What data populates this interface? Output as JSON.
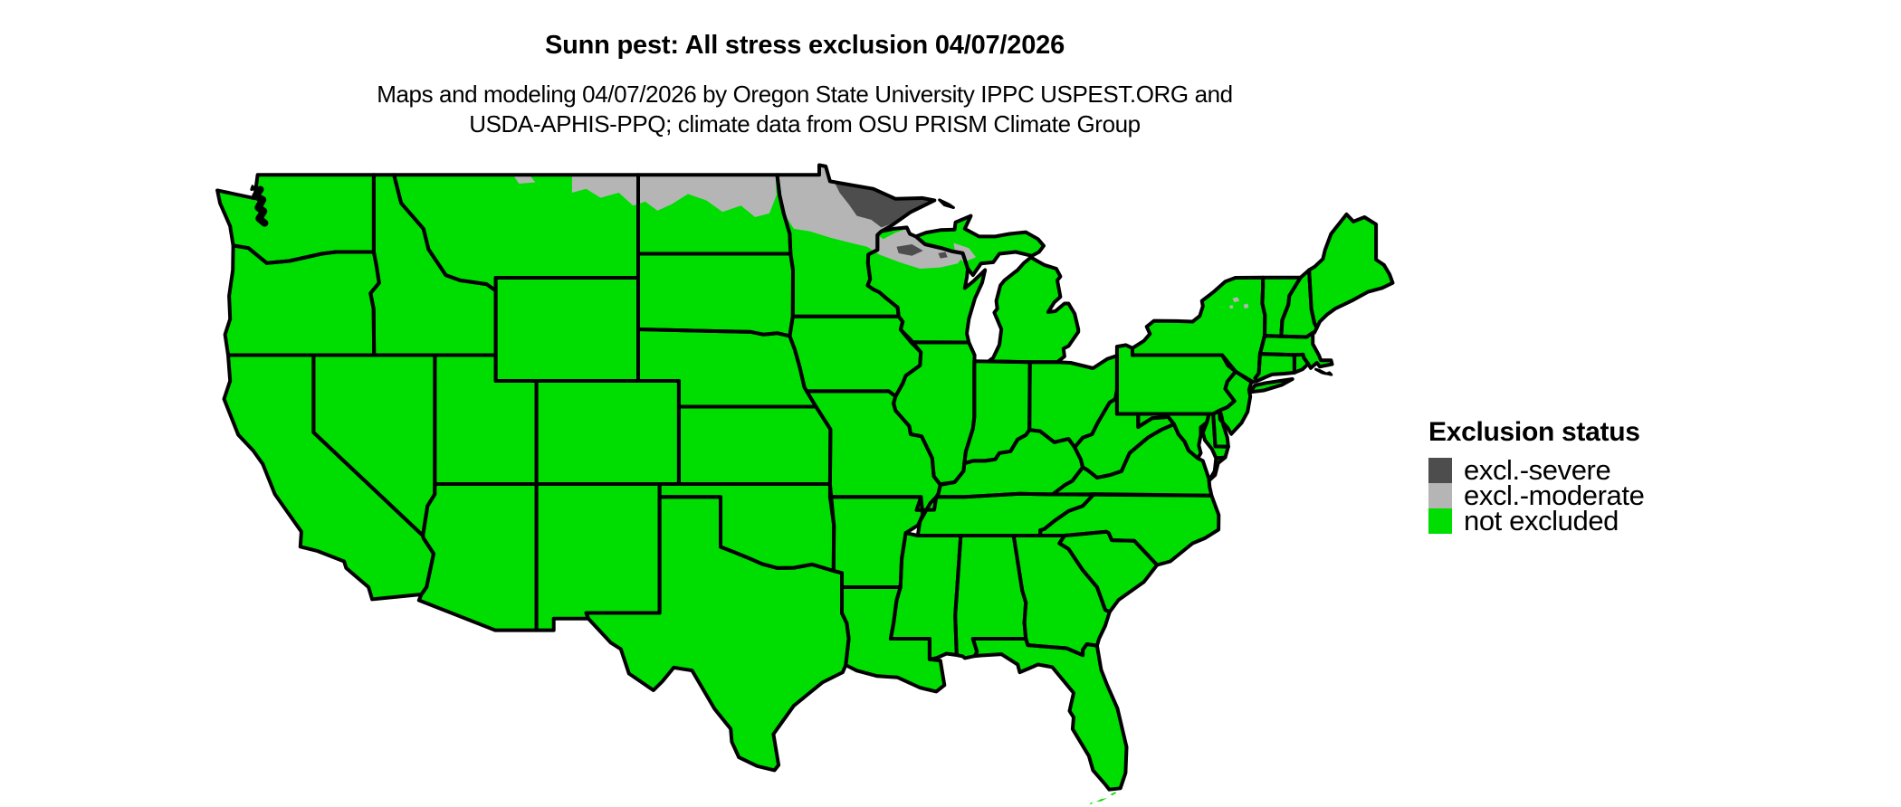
{
  "header": {
    "title": "Sunn pest: All stress exclusion 04/07/2026",
    "subtitle_line1": "Maps and modeling 04/07/2026 by Oregon State University IPPC USPEST.ORG and",
    "subtitle_line2": "USDA-APHIS-PPQ; climate data from OSU PRISM Climate Group"
  },
  "legend": {
    "title": "Exclusion status",
    "items": [
      {
        "key": "severe",
        "label": "excl.-severe",
        "color": "#4d4d4d"
      },
      {
        "key": "moderate",
        "label": "excl.-moderate",
        "color": "#b5b5b5"
      },
      {
        "key": "not_excluded",
        "label": "not excluded",
        "color": "#00dd00"
      }
    ]
  },
  "map": {
    "region_shown": "Contiguous United States",
    "date_shown": "04/07/2026",
    "default_status": "not excluded",
    "status_regions": [
      {
        "region": "northeastern Minnesota (Arrowhead)",
        "status": "excl.-severe"
      },
      {
        "region": "far northern Wisconsin (small patches)",
        "status": "excl.-severe"
      },
      {
        "region": "northern Minnesota",
        "status": "excl.-moderate"
      },
      {
        "region": "northern North Dakota / northeastern Montana",
        "status": "excl.-moderate"
      },
      {
        "region": "northern Wisconsin and western Upper Michigan",
        "status": "excl.-moderate"
      },
      {
        "region": "Adirondacks, New York (small specks)",
        "status": "excl.-moderate"
      },
      {
        "region": "rest of contiguous United States",
        "status": "not excluded"
      }
    ]
  },
  "colors": {
    "background": "#ffffff",
    "border": "#000000",
    "severe": "#4d4d4d",
    "moderate": "#b5b5b5",
    "not_excluded": "#00dd00",
    "text": "#000000"
  }
}
